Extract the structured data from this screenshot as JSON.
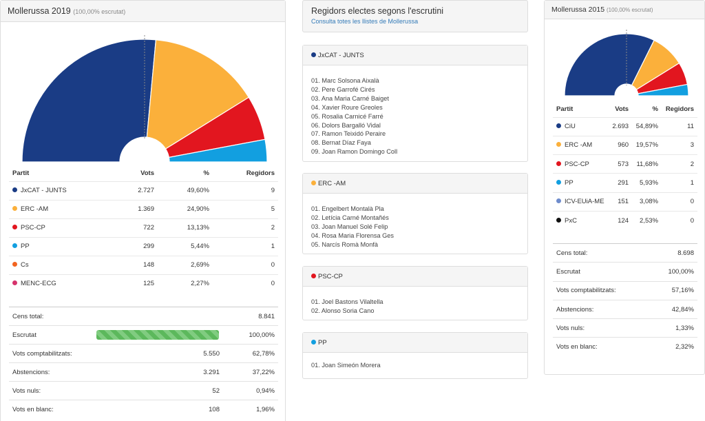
{
  "left": {
    "title": "Mollerussa 2019",
    "subtitle": "(100,00% escrutat)",
    "headers": {
      "party": "Partit",
      "votes": "Vots",
      "pct": "%",
      "seats": "Regidors"
    },
    "parties": [
      {
        "name": "JxCAT - JUNTS",
        "votes": "2.727",
        "pct": "49,60%",
        "seats": "9",
        "color": "#1a3c85"
      },
      {
        "name": "ERC -AM",
        "votes": "1.369",
        "pct": "24,90%",
        "seats": "5",
        "color": "#fbb03b"
      },
      {
        "name": "PSC-CP",
        "votes": "722",
        "pct": "13,13%",
        "seats": "2",
        "color": "#e2161f"
      },
      {
        "name": "PP",
        "votes": "299",
        "pct": "5,44%",
        "seats": "1",
        "color": "#129fe0"
      },
      {
        "name": "Cs",
        "votes": "148",
        "pct": "2,69%",
        "seats": "0",
        "color": "#f26420"
      },
      {
        "name": "MENC-ECG",
        "votes": "125",
        "pct": "2,27%",
        "seats": "0",
        "color": "#d6336c"
      }
    ],
    "stats": [
      {
        "label": "Cens total:",
        "a": "",
        "b": "8.841"
      },
      {
        "label": "Escrutat",
        "a": "",
        "b": "100,00%",
        "progress": 1.0
      },
      {
        "label": "Vots comptabilitzats:",
        "a": "5.550",
        "b": "62,78%"
      },
      {
        "label": "Abstencions:",
        "a": "3.291",
        "b": "37,22%"
      },
      {
        "label": "Vots nuls:",
        "a": "52",
        "b": "0,94%"
      },
      {
        "label": "Vots en blanc:",
        "a": "108",
        "b": "1,96%"
      }
    ]
  },
  "middle": {
    "title": "Regidors electes segons l'escrutini",
    "link": "Consulta totes les llistes de Mollerussa",
    "groups": [
      {
        "party": "JxCAT - JUNTS",
        "color": "#1a3c85",
        "members": [
          "01. Marc Solsona Aixalà",
          "02. Pere Garrofé Cirés",
          "03. Ana Maria Carné Baiget",
          "04. Xavier Roure Greoles",
          "05. Rosalia Carnicé Farré",
          "06. Dolors Bargalló Vidal",
          "07. Ramon Teixidó Peraire",
          "08. Bernat Díaz Faya",
          "09. Joan Ramon Domingo Coll"
        ]
      },
      {
        "party": "ERC -AM",
        "color": "#fbb03b",
        "members": [
          "01. Engelbert Montalà Pla",
          "02. Letícia Carné Montañés",
          "03. Joan Manuel Solé Felip",
          "04. Rosa Maria Florensa Ges",
          "05. Narcís Romà Monfà"
        ]
      },
      {
        "party": "PSC-CP",
        "color": "#e2161f",
        "members": [
          "01. Joel Bastons Vilaltella",
          "02. Alonso Soria Cano"
        ]
      },
      {
        "party": "PP",
        "color": "#129fe0",
        "members": [
          "01. Joan Simeón Morera"
        ]
      }
    ]
  },
  "right": {
    "title": "Mollerussa 2015",
    "subtitle": "(100,00% escrutat)",
    "headers": {
      "party": "Partit",
      "votes": "Vots",
      "pct": "%",
      "seats": "Regidors"
    },
    "parties": [
      {
        "name": "CiU",
        "votes": "2.693",
        "pct": "54,89%",
        "seats": "11",
        "color": "#1a3c85"
      },
      {
        "name": "ERC -AM",
        "votes": "960",
        "pct": "19,57%",
        "seats": "3",
        "color": "#fbb03b"
      },
      {
        "name": "PSC-CP",
        "votes": "573",
        "pct": "11,68%",
        "seats": "2",
        "color": "#e2161f"
      },
      {
        "name": "PP",
        "votes": "291",
        "pct": "5,93%",
        "seats": "1",
        "color": "#129fe0"
      },
      {
        "name": "ICV-EUiA-ME",
        "votes": "151",
        "pct": "3,08%",
        "seats": "0",
        "color": "#6e8ccc"
      },
      {
        "name": "PxC",
        "votes": "124",
        "pct": "2,53%",
        "seats": "0",
        "color": "#111111"
      }
    ],
    "stats": [
      {
        "label": "Cens total:",
        "b": "8.698"
      },
      {
        "label": "Escrutat",
        "b": "100,00%"
      },
      {
        "label": "Vots comptabilitzats:",
        "b": "57,16%"
      },
      {
        "label": "Abstencions:",
        "b": "42,84%"
      },
      {
        "label": "Vots nuls:",
        "b": "1,33%"
      },
      {
        "label": "Vots en blanc:",
        "b": "2,32%"
      }
    ]
  }
}
